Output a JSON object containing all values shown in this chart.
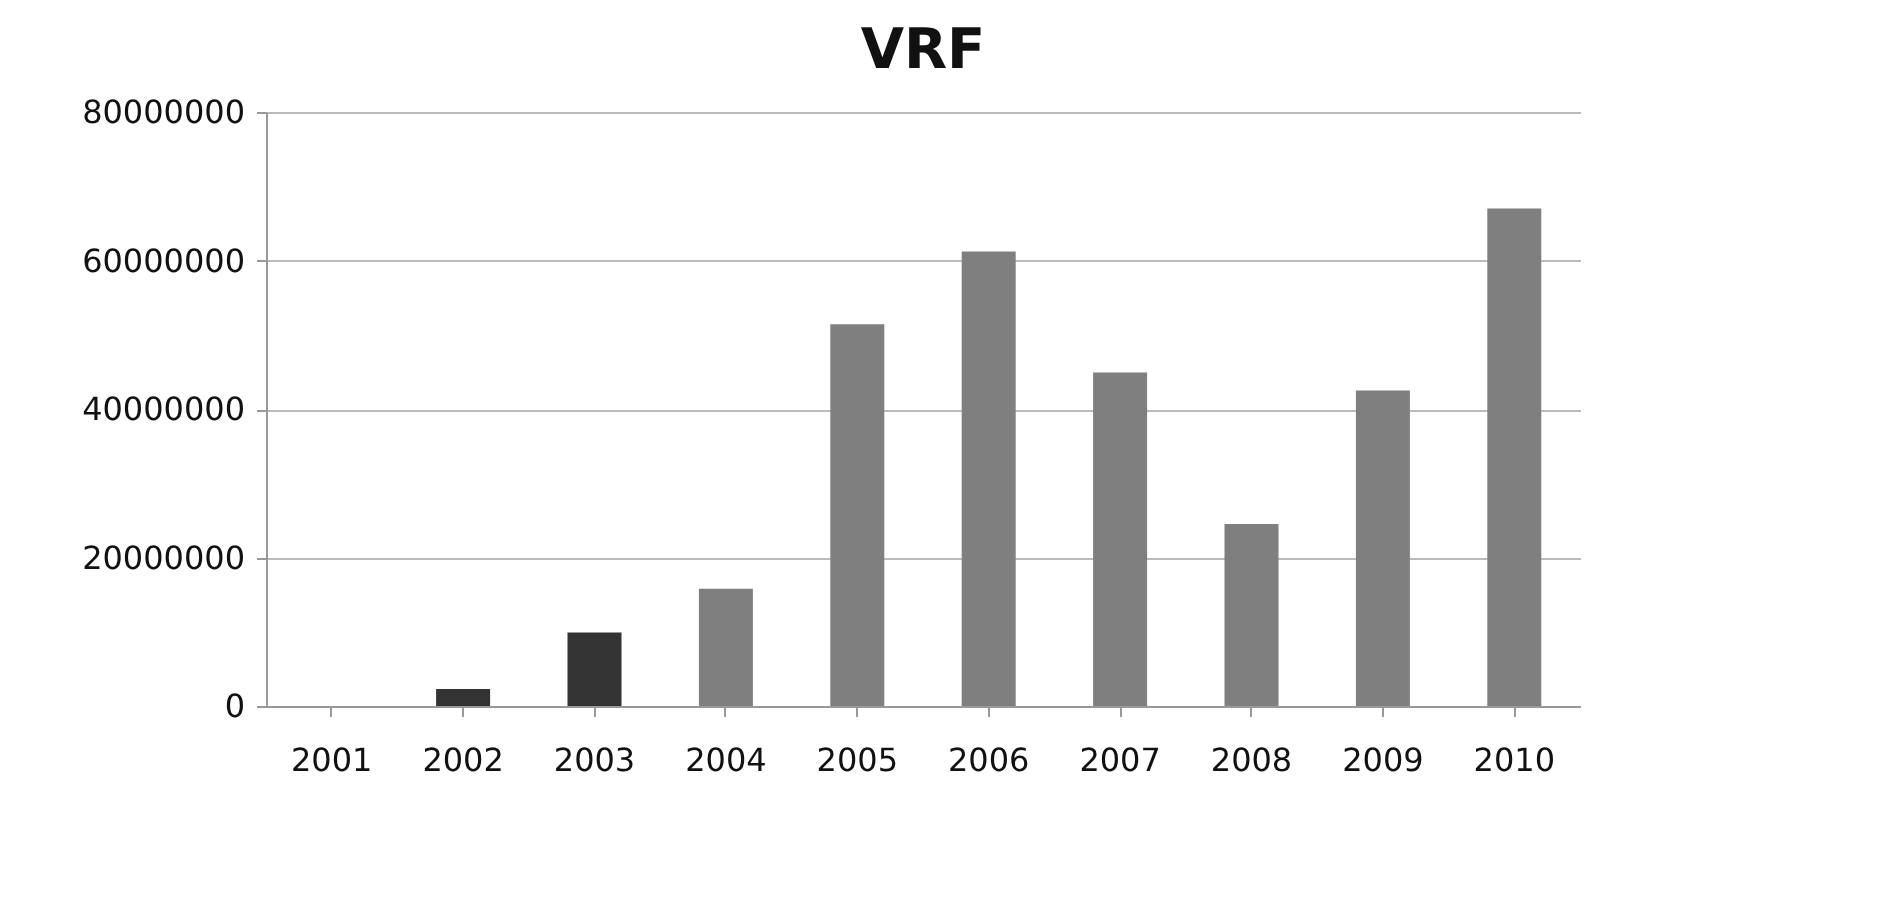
{
  "chart_data": {
    "type": "bar",
    "title": "VRF",
    "categories": [
      "2001",
      "2002",
      "2003",
      "2004",
      "2005",
      "2006",
      "2007",
      "2008",
      "2009",
      "2010"
    ],
    "values": [
      0,
      2300000,
      9900000,
      15800000,
      51400000,
      61200000,
      44900000,
      24500000,
      42500000,
      67000000
    ],
    "colors": [
      "#7f7f7f",
      "#333333",
      "#333333",
      "#7f7f7f",
      "#7f7f7f",
      "#7f7f7f",
      "#7f7f7f",
      "#7f7f7f",
      "#7f7f7f",
      "#7f7f7f"
    ],
    "ylim": [
      0,
      80000000
    ],
    "yticks": [
      0,
      20000000,
      40000000,
      60000000,
      80000000
    ],
    "grid": "y"
  }
}
